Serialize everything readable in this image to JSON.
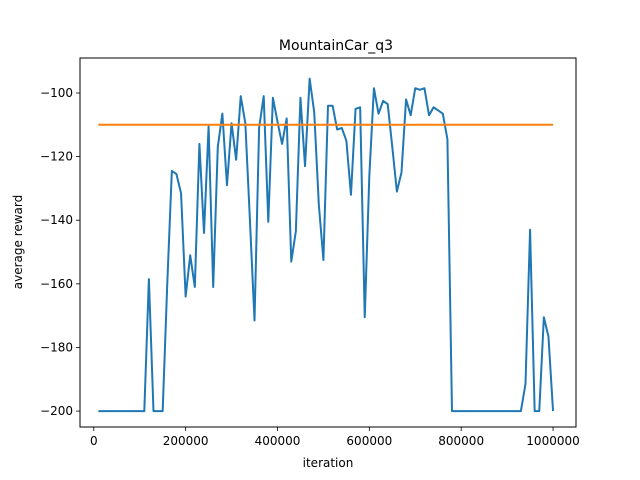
{
  "chart_data": {
    "type": "line",
    "title": "MountainCar_q3",
    "xlabel": "iteration",
    "ylabel": "average reward",
    "xlim": [
      -30000,
      1050000
    ],
    "ylim": [
      -205,
      -89
    ],
    "xticks": [
      0,
      200000,
      400000,
      600000,
      800000,
      1000000
    ],
    "xtick_labels": [
      "0",
      "200000",
      "400000",
      "600000",
      "800000",
      "1000000"
    ],
    "yticks": [
      -200,
      -180,
      -160,
      -140,
      -120,
      -100
    ],
    "ytick_labels": [
      "−200",
      "−180",
      "−160",
      "−140",
      "−120",
      "−100"
    ],
    "grid": false,
    "legend": "none",
    "series": [
      {
        "color": "#1f77b4",
        "points": [
          [
            10000,
            -200
          ],
          [
            20000,
            -200
          ],
          [
            30000,
            -200
          ],
          [
            40000,
            -200
          ],
          [
            50000,
            -200
          ],
          [
            60000,
            -200
          ],
          [
            70000,
            -200
          ],
          [
            80000,
            -200
          ],
          [
            90000,
            -200
          ],
          [
            100000,
            -200
          ],
          [
            110000,
            -200
          ],
          [
            120000,
            -158.5
          ],
          [
            130000,
            -200
          ],
          [
            140000,
            -200
          ],
          [
            150000,
            -200
          ],
          [
            160000,
            -160
          ],
          [
            170000,
            -124.5
          ],
          [
            180000,
            -125.5
          ],
          [
            190000,
            -131.5
          ],
          [
            200000,
            -164
          ],
          [
            210000,
            -151
          ],
          [
            220000,
            -161
          ],
          [
            230000,
            -116
          ],
          [
            240000,
            -144
          ],
          [
            250000,
            -110.5
          ],
          [
            260000,
            -161
          ],
          [
            270000,
            -117
          ],
          [
            280000,
            -106.5
          ],
          [
            290000,
            -129
          ],
          [
            300000,
            -109.5
          ],
          [
            310000,
            -121
          ],
          [
            320000,
            -101
          ],
          [
            330000,
            -109.5
          ],
          [
            340000,
            -140
          ],
          [
            350000,
            -171.5
          ],
          [
            360000,
            -111
          ],
          [
            370000,
            -101
          ],
          [
            380000,
            -140.5
          ],
          [
            390000,
            -101.5
          ],
          [
            400000,
            -109
          ],
          [
            410000,
            -116
          ],
          [
            420000,
            -108
          ],
          [
            430000,
            -153
          ],
          [
            440000,
            -143.5
          ],
          [
            450000,
            -101.5
          ],
          [
            460000,
            -123
          ],
          [
            470000,
            -95.5
          ],
          [
            480000,
            -106
          ],
          [
            490000,
            -135
          ],
          [
            500000,
            -152.5
          ],
          [
            510000,
            -104
          ],
          [
            520000,
            -104
          ],
          [
            530000,
            -111.5
          ],
          [
            540000,
            -111
          ],
          [
            550000,
            -115
          ],
          [
            560000,
            -132
          ],
          [
            570000,
            -105
          ],
          [
            580000,
            -104.5
          ],
          [
            590000,
            -170.5
          ],
          [
            600000,
            -126
          ],
          [
            610000,
            -98.5
          ],
          [
            620000,
            -106.5
          ],
          [
            630000,
            -102.5
          ],
          [
            640000,
            -103.5
          ],
          [
            650000,
            -117
          ],
          [
            660000,
            -131
          ],
          [
            670000,
            -125
          ],
          [
            680000,
            -102
          ],
          [
            690000,
            -107
          ],
          [
            700000,
            -98.5
          ],
          [
            710000,
            -99
          ],
          [
            720000,
            -98.5
          ],
          [
            730000,
            -107
          ],
          [
            740000,
            -104.5
          ],
          [
            750000,
            -105.5
          ],
          [
            760000,
            -106.5
          ],
          [
            770000,
            -114.5
          ],
          [
            780000,
            -200
          ],
          [
            790000,
            -200
          ],
          [
            800000,
            -200
          ],
          [
            810000,
            -200
          ],
          [
            820000,
            -200
          ],
          [
            830000,
            -200
          ],
          [
            840000,
            -200
          ],
          [
            850000,
            -200
          ],
          [
            860000,
            -200
          ],
          [
            870000,
            -200
          ],
          [
            880000,
            -200
          ],
          [
            890000,
            -200
          ],
          [
            900000,
            -200
          ],
          [
            910000,
            -200
          ],
          [
            920000,
            -200
          ],
          [
            930000,
            -200
          ],
          [
            940000,
            -191.5
          ],
          [
            950000,
            -143
          ],
          [
            960000,
            -200
          ],
          [
            970000,
            -200
          ],
          [
            980000,
            -170.5
          ],
          [
            990000,
            -176.5
          ],
          [
            1000000,
            -200
          ]
        ]
      },
      {
        "color": "#ff7f0e",
        "points": [
          [
            10000,
            -110
          ],
          [
            1000000,
            -110
          ]
        ]
      }
    ]
  }
}
